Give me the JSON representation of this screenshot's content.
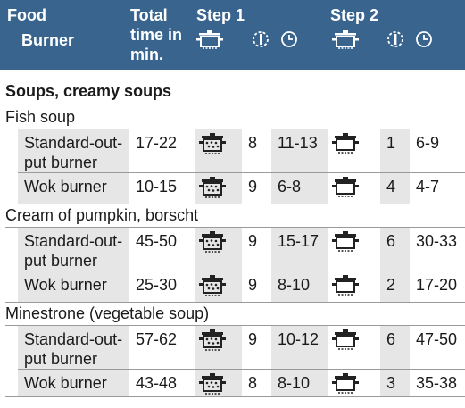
{
  "header": {
    "food_label": "Food",
    "burner_label": "Burner",
    "total_time_label": "Total\ntime in\nmin.",
    "step1_label": "Step 1",
    "step2_label": "Step 2",
    "icons": [
      "pot-icon",
      "power-level-icon",
      "clock-icon"
    ]
  },
  "section": {
    "title": "Soups, creamy soups"
  },
  "foods": [
    {
      "name": "Fish soup",
      "rows": [
        {
          "burner": "Standard-out-\nput burner",
          "total": "17-22",
          "step1_icon": "wok-pot-icon",
          "step1_level": "8",
          "step1_time": "11-13",
          "step2_icon": "covered-pot-icon",
          "step2_level": "1",
          "step2_time": "6-9"
        },
        {
          "burner": "Wok burner",
          "total": "10-15",
          "step1_icon": "wok-pot-icon",
          "step1_level": "9",
          "step1_time": "6-8",
          "step2_icon": "covered-pot-icon",
          "step2_level": "4",
          "step2_time": "4-7"
        }
      ]
    },
    {
      "name": "Cream of pumpkin, borscht",
      "rows": [
        {
          "burner": "Standard-out-\nput burner",
          "total": "45-50",
          "step1_icon": "wok-pot-icon",
          "step1_level": "9",
          "step1_time": "15-17",
          "step2_icon": "covered-pot-icon",
          "step2_level": "6",
          "step2_time": "30-33"
        },
        {
          "burner": "Wok burner",
          "total": "25-30",
          "step1_icon": "wok-pot-icon",
          "step1_level": "9",
          "step1_time": "8-10",
          "step2_icon": "covered-pot-icon",
          "step2_level": "2",
          "step2_time": "17-20"
        }
      ]
    },
    {
      "name": "Minestrone (vegetable soup)",
      "rows": [
        {
          "burner": "Standard-out-\nput burner",
          "total": "57-62",
          "step1_icon": "wok-pot-icon",
          "step1_level": "9",
          "step1_time": "10-12",
          "step2_icon": "covered-pot-icon",
          "step2_level": "6",
          "step2_time": "47-50"
        },
        {
          "burner": "Wok burner",
          "total": "43-48",
          "step1_icon": "wok-pot-icon",
          "step1_level": "8",
          "step1_time": "8-10",
          "step2_icon": "covered-pot-icon",
          "step2_level": "3",
          "step2_time": "35-38"
        }
      ]
    }
  ],
  "colors": {
    "header_bg": "#38648e",
    "header_text": "#ffffff",
    "shade": "#e6e6e6",
    "rule": "#9a9a9a"
  }
}
